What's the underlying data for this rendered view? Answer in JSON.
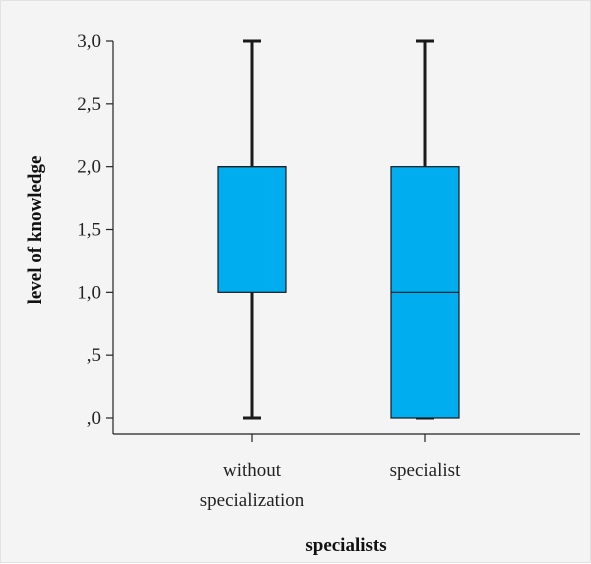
{
  "chart_data": {
    "type": "box",
    "xlabel": "specialists",
    "ylabel": "level of knowledge",
    "ylim": [
      0,
      3.0
    ],
    "y_ticks": [
      {
        "value": 0.0,
        "label": ",0"
      },
      {
        "value": 0.5,
        "label": ",5"
      },
      {
        "value": 1.0,
        "label": "1,0"
      },
      {
        "value": 1.5,
        "label": "1,5"
      },
      {
        "value": 2.0,
        "label": "2,0"
      },
      {
        "value": 2.5,
        "label": "2,5"
      },
      {
        "value": 3.0,
        "label": "3,0"
      }
    ],
    "categories": [
      {
        "label_lines": [
          "without",
          "specialization"
        ],
        "min": 0.0,
        "q1": 1.0,
        "median": 2.0,
        "q3": 2.0,
        "max": 3.0
      },
      {
        "label_lines": [
          "specialist"
        ],
        "min": 0.0,
        "q1": 0.0,
        "median": 1.0,
        "q3": 2.0,
        "max": 3.0
      }
    ],
    "colors": {
      "box_fill": "#00aeef",
      "box_stroke": "#1a1a1a",
      "whisker": "#1a1a1a",
      "axis": "#222222"
    }
  }
}
